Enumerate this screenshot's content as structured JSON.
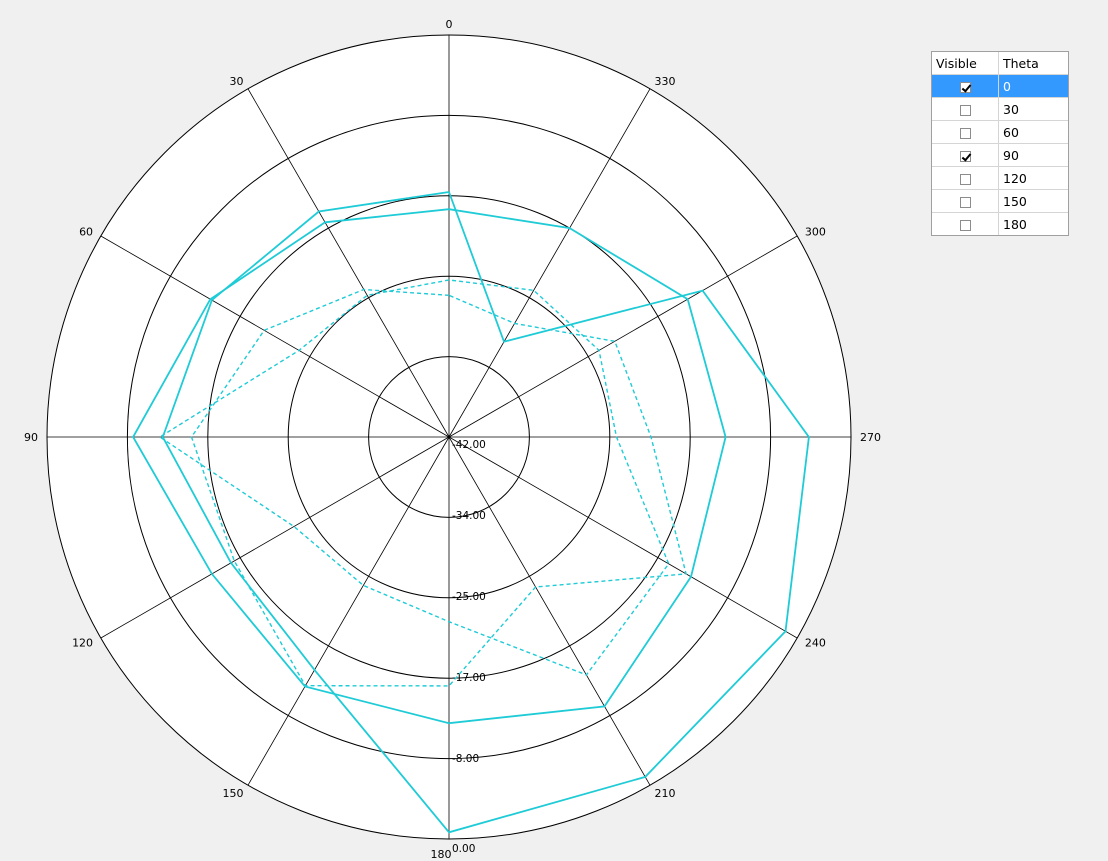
{
  "chart_data": {
    "type": "polar-line",
    "angle_labels": [
      "0",
      "30",
      "60",
      "90",
      "120",
      "150",
      "180",
      "210",
      "240",
      "270",
      "300",
      "330"
    ],
    "ring_labels": [
      "0.00",
      "-8.00",
      "-17.00",
      "-25.00",
      "-34.00",
      "-42.00"
    ],
    "r_min": -42,
    "r_max": 0,
    "series": [
      {
        "style": "solid",
        "color": "#1ecbd6",
        "points": [
          [
            0,
            -18.2
          ],
          [
            30,
            -16.1
          ],
          [
            60,
            -13.2
          ],
          [
            90,
            -9.0
          ],
          [
            120,
            -13.4
          ],
          [
            150,
            -11.9
          ],
          [
            180,
            -12.1
          ],
          [
            210,
            -9.5
          ],
          [
            240,
            -12.8
          ],
          [
            270,
            -13.1
          ],
          [
            300,
            -13.2
          ],
          [
            330,
            -16.8
          ]
        ]
      },
      {
        "style": "solid",
        "color": "#1ecbd6",
        "points": [
          [
            0,
            -16.4
          ],
          [
            30,
            -14.8
          ],
          [
            60,
            -13.4
          ],
          [
            90,
            -12.1
          ],
          [
            120,
            -15.7
          ],
          [
            150,
            -13.9
          ],
          [
            180,
            -0.7
          ],
          [
            210,
            -1.0
          ],
          [
            240,
            -1.4
          ],
          [
            270,
            -4.4
          ],
          [
            300,
            -11.4
          ],
          [
            330,
            -30.5
          ]
        ]
      },
      {
        "style": "dashed",
        "color": "#1ecbd6",
        "points": [
          [
            0,
            -25.6
          ],
          [
            30,
            -24.9
          ],
          [
            60,
            -23.9
          ],
          [
            90,
            -11.8
          ],
          [
            120,
            -23.3
          ],
          [
            150,
            -24.1
          ],
          [
            180,
            -22.7
          ],
          [
            210,
            -13.3
          ],
          [
            240,
            -15.5
          ],
          [
            270,
            -24.5
          ],
          [
            300,
            -23.9
          ],
          [
            330,
            -24.3
          ]
        ]
      },
      {
        "style": "dashed",
        "color": "#1ecbd6",
        "points": [
          [
            0,
            -27.2
          ],
          [
            30,
            -24.2
          ],
          [
            60,
            -19.7
          ],
          [
            90,
            -15.1
          ],
          [
            120,
            -16.1
          ],
          [
            150,
            -12.0
          ],
          [
            180,
            -16.0
          ],
          [
            210,
            -23.9
          ],
          [
            240,
            -13.4
          ],
          [
            270,
            -20.9
          ],
          [
            300,
            -22.0
          ],
          [
            330,
            -28.3
          ]
        ]
      }
    ],
    "legend": {
      "headers": [
        "Visible",
        "Theta"
      ],
      "rows": [
        {
          "theta": "0",
          "visible": true,
          "selected": true
        },
        {
          "theta": "30",
          "visible": false,
          "selected": false
        },
        {
          "theta": "60",
          "visible": false,
          "selected": false
        },
        {
          "theta": "90",
          "visible": true,
          "selected": false
        },
        {
          "theta": "120",
          "visible": false,
          "selected": false
        },
        {
          "theta": "150",
          "visible": false,
          "selected": false
        },
        {
          "theta": "180",
          "visible": false,
          "selected": false
        }
      ]
    }
  },
  "colors": {
    "background": "#f0f0f0",
    "plot_fill": "#ffffff",
    "grid": "#000000",
    "series": "#1ecbd6",
    "selection": "#3399ff"
  }
}
